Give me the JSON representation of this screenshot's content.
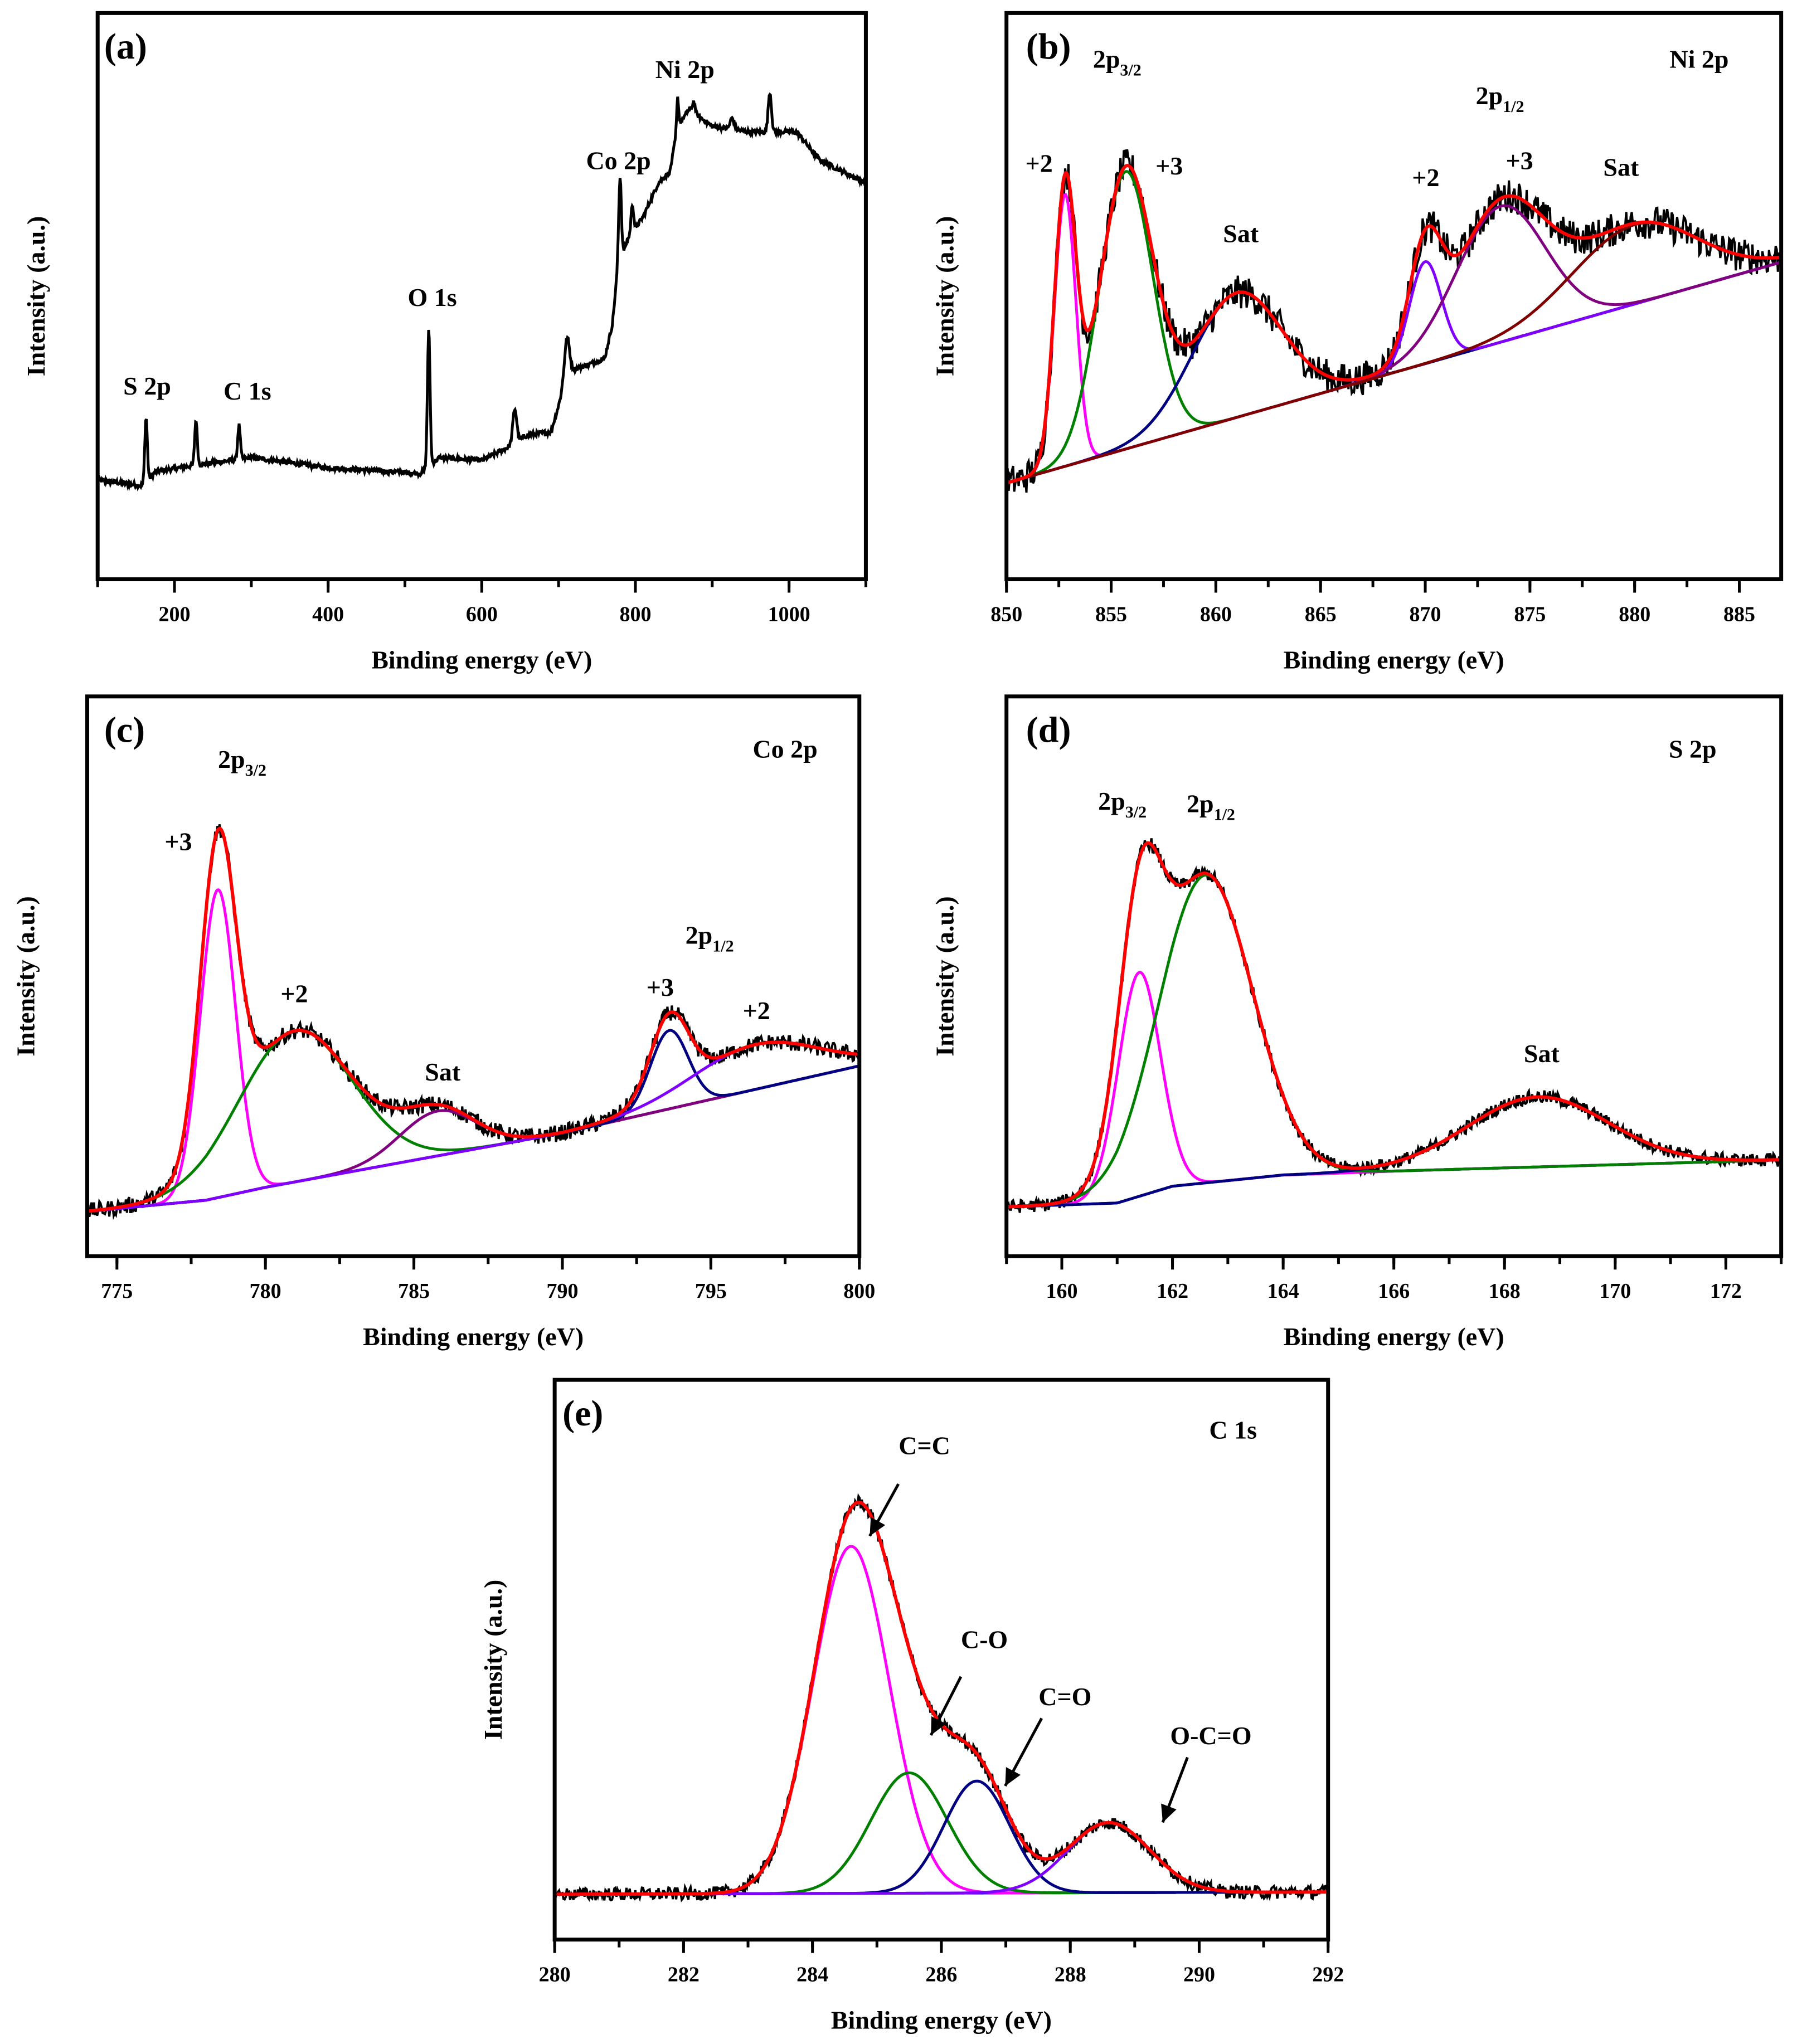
{
  "chart_data": [
    {
      "panel": "(a)",
      "type": "line",
      "survey": true,
      "xlabel": "Binding energy (eV)",
      "ylabel": "Intensity (a.u.)",
      "xlim": [
        100,
        1100
      ],
      "ylim": [
        0,
        1
      ],
      "xticks": [
        "200",
        "400",
        "600",
        "800",
        "1000"
      ],
      "minor_step": 100,
      "background": [
        [
          100,
          0.175
        ],
        [
          160,
          0.165
        ],
        [
          175,
          0.19
        ],
        [
          220,
          0.2
        ],
        [
          300,
          0.215
        ],
        [
          400,
          0.197
        ],
        [
          520,
          0.187
        ],
        [
          545,
          0.215
        ],
        [
          600,
          0.21
        ],
        [
          630,
          0.23
        ],
        [
          660,
          0.255
        ],
        [
          690,
          0.26
        ],
        [
          705,
          0.33
        ],
        [
          720,
          0.37
        ],
        [
          760,
          0.39
        ],
        [
          770,
          0.45
        ],
        [
          777,
          0.55
        ],
        [
          790,
          0.6
        ],
        [
          810,
          0.64
        ],
        [
          830,
          0.7
        ],
        [
          845,
          0.72
        ],
        [
          855,
          0.8
        ],
        [
          870,
          0.83
        ],
        [
          900,
          0.8
        ],
        [
          950,
          0.79
        ],
        [
          1010,
          0.79
        ],
        [
          1040,
          0.74
        ],
        [
          1100,
          0.7
        ]
      ],
      "peaks": [
        [
          163,
          4,
          0.115
        ],
        [
          228,
          4,
          0.08
        ],
        [
          284,
          4,
          0.06
        ],
        [
          531,
          4,
          0.24
        ],
        [
          643,
          6,
          0.06
        ],
        [
          711,
          8,
          0.08
        ],
        [
          780,
          4,
          0.15
        ],
        [
          796,
          4,
          0.05
        ],
        [
          855,
          3,
          0.05
        ],
        [
          876,
          4,
          0.02
        ],
        [
          926,
          6,
          0.02
        ],
        [
          975,
          5,
          0.07
        ]
      ],
      "noise": 0.004,
      "annotations": [
        {
          "text": "(a)"
        },
        {
          "text": "S 2p"
        },
        {
          "text": "C 1s"
        },
        {
          "text": "O 1s"
        },
        {
          "text": "Co 2p"
        },
        {
          "text": "Ni 2p"
        }
      ]
    },
    {
      "panel": "(b)",
      "type": "line",
      "title": "Ni 2p",
      "xlabel": "Binding energy (eV)",
      "ylabel": "Intensity (a.u.)",
      "xlim": [
        850,
        887
      ],
      "ylim": [
        0,
        1
      ],
      "xticks": [
        "850",
        "855",
        "860",
        "865",
        "870",
        "875",
        "880",
        "885"
      ],
      "minor_step": 2.5,
      "background": [
        [
          850,
          0.17
        ],
        [
          887,
          0.56
        ]
      ],
      "background_color": "#800000",
      "components": [
        {
          "name": "Ni2+ 2p3/2",
          "color": "#ff00ff",
          "center": 852.8,
          "fwhm": 1.2,
          "height": 0.48
        },
        {
          "name": "Ni3+ 2p3/2",
          "color": "#008000",
          "center": 855.7,
          "fwhm": 3.0,
          "height": 0.49
        },
        {
          "name": "Sat",
          "color": "#000080",
          "center": 861.0,
          "fwhm": 5.0,
          "height": 0.22
        },
        {
          "name": "Ni2+ 2p1/2",
          "color": "#8000ff",
          "center": 870.0,
          "fwhm": 1.8,
          "height": 0.18
        },
        {
          "name": "Ni3+ 2p1/2",
          "color": "#800080",
          "center": 873.6,
          "fwhm": 5.0,
          "height": 0.24
        },
        {
          "name": "Sat",
          "color": "#800000",
          "center": 880.0,
          "fwhm": 7.0,
          "height": 0.14
        }
      ],
      "envelope_color": "#ff0000",
      "noise": 0.03,
      "annotations": [
        {
          "text": "(b)"
        },
        {
          "text": "Ni 2p"
        },
        {
          "text": "2p",
          "sub": "3/2"
        },
        {
          "text": "+2"
        },
        {
          "text": "+3"
        },
        {
          "text": "Sat"
        },
        {
          "text": "+2"
        },
        {
          "text": "2p",
          "sub": "1/2"
        },
        {
          "text": "+3"
        },
        {
          "text": "Sat"
        }
      ]
    },
    {
      "panel": "(c)",
      "type": "line",
      "title": "Co 2p",
      "xlabel": "Binding energy (eV)",
      "ylabel": "Intensity (a.u.)",
      "xlim": [
        774,
        800
      ],
      "ylim": [
        0,
        1
      ],
      "xticks": [
        "775",
        "780",
        "785",
        "790",
        "795",
        "800"
      ],
      "minor_step": 2.5,
      "background": [
        [
          774,
          0.08
        ],
        [
          778,
          0.1
        ],
        [
          780,
          0.123
        ],
        [
          790,
          0.22
        ],
        [
          800,
          0.34
        ]
      ],
      "background_color": "#800080",
      "components": [
        {
          "name": "Co3+ 2p3/2",
          "color": "#ff00ff",
          "center": 778.4,
          "fwhm": 1.4,
          "height": 0.55
        },
        {
          "name": "Co2+ 2p3/2",
          "color": "#008000",
          "center": 781.0,
          "fwhm": 4.5,
          "height": 0.27
        },
        {
          "name": "Sat",
          "color": "#800080",
          "center": 785.8,
          "fwhm": 3.0,
          "height": 0.08
        },
        {
          "name": "Co3+ 2p1/2",
          "color": "#000080",
          "center": 793.6,
          "fwhm": 1.5,
          "height": 0.14
        },
        {
          "name": "Co2+ 2p1/2",
          "color": "#8000ff",
          "center": 796.5,
          "fwhm": 5.0,
          "height": 0.08
        }
      ],
      "envelope_color": "#ff0000",
      "noise": 0.015,
      "annotations": [
        {
          "text": "(c)"
        },
        {
          "text": "Co 2p"
        },
        {
          "text": "2p",
          "sub": "3/2"
        },
        {
          "text": "+3"
        },
        {
          "text": "+2"
        },
        {
          "text": "Sat"
        },
        {
          "text": "+3"
        },
        {
          "text": "2p",
          "sub": "1/2"
        },
        {
          "text": "+2"
        }
      ]
    },
    {
      "panel": "(d)",
      "type": "line",
      "title": "S 2p",
      "xlabel": "Binding energy (eV)",
      "ylabel": "Intensity (a.u.)",
      "xlim": [
        159,
        173
      ],
      "ylim": [
        0,
        1
      ],
      "xticks": [
        "160",
        "162",
        "164",
        "166",
        "168",
        "170",
        "172"
      ],
      "minor_step": 1,
      "background": [
        [
          159,
          0.088
        ],
        [
          161,
          0.095
        ],
        [
          162,
          0.125
        ],
        [
          164,
          0.145
        ],
        [
          166,
          0.152
        ],
        [
          173,
          0.172
        ]
      ],
      "background_color": "#000080",
      "components": [
        {
          "name": "S 2p3/2",
          "color": "#ff00ff",
          "center": 161.4,
          "fwhm": 0.9,
          "height": 0.4
        },
        {
          "name": "S 2p1/2",
          "color": "#008000",
          "center": 162.6,
          "fwhm": 2.0,
          "height": 0.55
        },
        {
          "name": "Sat",
          "color": "#000080",
          "center": 168.6,
          "fwhm": 3.0,
          "height": 0.125
        }
      ],
      "envelope_color": "#ff0000",
      "noise": 0.012,
      "annotations": [
        {
          "text": "(d)"
        },
        {
          "text": "S 2p"
        },
        {
          "text": "2p",
          "sub": "3/2"
        },
        {
          "text": "2p",
          "sub": "1/2"
        },
        {
          "text": "Sat"
        }
      ]
    },
    {
      "panel": "(e)",
      "type": "line",
      "title": "C 1s",
      "xlabel": "Binding energy (eV)",
      "ylabel": "Intensity (a.u.)",
      "xlim": [
        280,
        292
      ],
      "ylim": [
        0,
        1
      ],
      "xticks": [
        "280",
        "282",
        "284",
        "286",
        "288",
        "290",
        "292"
      ],
      "minor_step": 1,
      "background": [
        [
          280,
          0.081
        ],
        [
          292,
          0.085
        ]
      ],
      "background_color": "#0000ff",
      "components": [
        {
          "name": "C=C",
          "color": "#ff00ff",
          "center": 284.6,
          "fwhm": 1.4,
          "height": 0.62
        },
        {
          "name": "C-O",
          "color": "#008000",
          "center": 285.5,
          "fwhm": 1.4,
          "height": 0.215
        },
        {
          "name": "C=O",
          "color": "#000080",
          "center": 286.55,
          "fwhm": 1.2,
          "height": 0.2
        },
        {
          "name": "O-C=O",
          "color": "#8000ff",
          "center": 288.6,
          "fwhm": 1.5,
          "height": 0.125
        }
      ],
      "envelope_color": "#ff0000",
      "noise": 0.012,
      "annotations": [
        {
          "text": "(e)"
        },
        {
          "text": "C 1s"
        },
        {
          "text": "C=C"
        },
        {
          "text": "C-O"
        },
        {
          "text": "C=O"
        },
        {
          "text": "O-C=O"
        }
      ]
    }
  ]
}
